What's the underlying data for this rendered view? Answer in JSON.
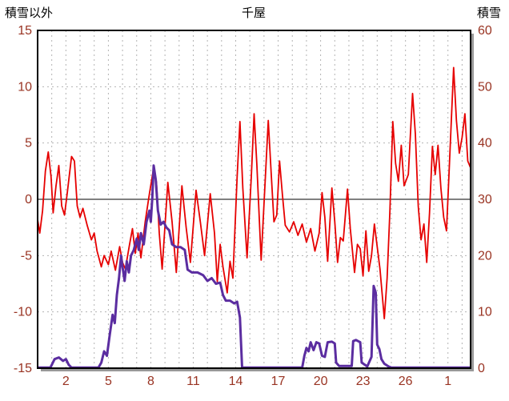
{
  "header": {
    "left_label": "積雪以外",
    "title": "千屋",
    "right_label": "積雪"
  },
  "colors": {
    "tick_label": "#993322",
    "temperature_line": "#e60000",
    "snow_line": "#5b2da0",
    "grid": "#b3b3b3",
    "zero_line": "#808080",
    "frame": "#000000",
    "frame_shadow": "#999999"
  },
  "chart_data": {
    "type": "line",
    "title": "千屋",
    "grid": true,
    "legend": "none",
    "left_axis": {
      "label": "積雪以外",
      "min": -15,
      "max": 15,
      "ticks": [
        15,
        10,
        5,
        0,
        -5,
        -10,
        -15
      ]
    },
    "right_axis": {
      "label": "積雪",
      "min": 0,
      "max": 60,
      "ticks": [
        60,
        50,
        40,
        30,
        20,
        10,
        0
      ]
    },
    "x_axis": {
      "day_min": 0,
      "day_max": 30.6,
      "grid_step": 1,
      "tick_days": [
        2,
        5,
        8,
        11,
        14,
        17,
        20,
        23,
        26,
        29
      ],
      "tick_labels": [
        "2",
        "5",
        "8",
        "11",
        "14",
        "17",
        "20",
        "23",
        "26",
        "1"
      ]
    },
    "series": [
      {
        "name": "積雪以外",
        "axis": "left",
        "color": "#e60000",
        "width": 1.8,
        "points": [
          [
            0.0,
            -1.8
          ],
          [
            0.15,
            -3.0
          ],
          [
            0.35,
            -1.0
          ],
          [
            0.55,
            2.5
          ],
          [
            0.75,
            4.2
          ],
          [
            0.95,
            2.0
          ],
          [
            1.1,
            -1.2
          ],
          [
            1.3,
            1.2
          ],
          [
            1.5,
            3.0
          ],
          [
            1.7,
            -0.6
          ],
          [
            1.9,
            -1.4
          ],
          [
            2.1,
            0.6
          ],
          [
            2.4,
            3.8
          ],
          [
            2.6,
            3.4
          ],
          [
            2.8,
            -0.6
          ],
          [
            3.0,
            -1.6
          ],
          [
            3.2,
            -0.8
          ],
          [
            3.5,
            -2.3
          ],
          [
            3.8,
            -3.6
          ],
          [
            4.0,
            -3.0
          ],
          [
            4.2,
            -4.6
          ],
          [
            4.5,
            -6.0
          ],
          [
            4.7,
            -5.0
          ],
          [
            5.0,
            -5.8
          ],
          [
            5.2,
            -4.6
          ],
          [
            5.5,
            -6.3
          ],
          [
            5.8,
            -4.2
          ],
          [
            6.0,
            -5.6
          ],
          [
            6.2,
            -6.2
          ],
          [
            6.5,
            -4.0
          ],
          [
            6.7,
            -2.6
          ],
          [
            6.9,
            -4.8
          ],
          [
            7.1,
            -3.0
          ],
          [
            7.3,
            -5.2
          ],
          [
            7.6,
            -2.0
          ],
          [
            7.9,
            0.5
          ],
          [
            8.2,
            2.8
          ],
          [
            8.4,
            1.5
          ],
          [
            8.6,
            -3.0
          ],
          [
            8.8,
            -6.2
          ],
          [
            9.2,
            1.5
          ],
          [
            9.5,
            -2.0
          ],
          [
            9.8,
            -6.5
          ],
          [
            10.2,
            1.2
          ],
          [
            10.5,
            -2.5
          ],
          [
            10.8,
            -5.6
          ],
          [
            11.2,
            0.8
          ],
          [
            11.5,
            -2.0
          ],
          [
            11.8,
            -5.0
          ],
          [
            12.2,
            0.5
          ],
          [
            12.5,
            -3.0
          ],
          [
            12.7,
            -7.3
          ],
          [
            12.9,
            -4.0
          ],
          [
            13.1,
            -6.0
          ],
          [
            13.4,
            -8.3
          ],
          [
            13.6,
            -5.5
          ],
          [
            13.8,
            -7.0
          ],
          [
            14.1,
            2.0
          ],
          [
            14.3,
            6.9
          ],
          [
            14.5,
            1.0
          ],
          [
            14.8,
            -5.2
          ],
          [
            15.1,
            2.0
          ],
          [
            15.3,
            7.6
          ],
          [
            15.5,
            3.0
          ],
          [
            15.8,
            -5.4
          ],
          [
            16.1,
            2.0
          ],
          [
            16.3,
            7.0
          ],
          [
            16.5,
            2.5
          ],
          [
            16.7,
            -2.0
          ],
          [
            16.9,
            -1.4
          ],
          [
            17.1,
            3.4
          ],
          [
            17.3,
            0.4
          ],
          [
            17.5,
            -2.3
          ],
          [
            17.8,
            -2.9
          ],
          [
            18.1,
            -2.0
          ],
          [
            18.4,
            -3.2
          ],
          [
            18.7,
            -2.2
          ],
          [
            19.0,
            -3.8
          ],
          [
            19.3,
            -2.6
          ],
          [
            19.6,
            -4.6
          ],
          [
            19.9,
            -3.0
          ],
          [
            20.1,
            0.6
          ],
          [
            20.3,
            -1.6
          ],
          [
            20.5,
            -5.5
          ],
          [
            20.8,
            1.0
          ],
          [
            21.0,
            -2.0
          ],
          [
            21.2,
            -5.6
          ],
          [
            21.4,
            -3.4
          ],
          [
            21.6,
            -3.7
          ],
          [
            21.9,
            0.9
          ],
          [
            22.1,
            -2.6
          ],
          [
            22.4,
            -6.5
          ],
          [
            22.6,
            -4.0
          ],
          [
            22.8,
            -4.4
          ],
          [
            23.0,
            -6.8
          ],
          [
            23.2,
            -2.8
          ],
          [
            23.4,
            -6.4
          ],
          [
            23.6,
            -5.0
          ],
          [
            23.8,
            -2.2
          ],
          [
            24.0,
            -4.2
          ],
          [
            24.2,
            -6.2
          ],
          [
            24.5,
            -10.6
          ],
          [
            24.7,
            -7.0
          ],
          [
            24.9,
            -1.0
          ],
          [
            25.1,
            6.9
          ],
          [
            25.3,
            3.2
          ],
          [
            25.5,
            1.6
          ],
          [
            25.7,
            4.8
          ],
          [
            25.9,
            1.2
          ],
          [
            26.2,
            2.2
          ],
          [
            26.5,
            9.4
          ],
          [
            26.7,
            5.8
          ],
          [
            26.9,
            -0.6
          ],
          [
            27.1,
            -3.6
          ],
          [
            27.3,
            -2.2
          ],
          [
            27.5,
            -5.6
          ],
          [
            27.7,
            -1.2
          ],
          [
            27.9,
            4.7
          ],
          [
            28.1,
            2.2
          ],
          [
            28.3,
            4.8
          ],
          [
            28.5,
            1.0
          ],
          [
            28.7,
            -1.6
          ],
          [
            28.9,
            -2.8
          ],
          [
            29.1,
            3.0
          ],
          [
            29.4,
            11.7
          ],
          [
            29.6,
            7.0
          ],
          [
            29.8,
            4.1
          ],
          [
            30.0,
            5.5
          ],
          [
            30.2,
            7.6
          ],
          [
            30.4,
            3.4
          ],
          [
            30.6,
            2.8
          ]
        ]
      },
      {
        "name": "積雪",
        "axis": "right",
        "color": "#5b2da0",
        "width": 3,
        "points": [
          [
            0.0,
            0.1
          ],
          [
            0.9,
            0.1
          ],
          [
            1.0,
            0.6
          ],
          [
            1.2,
            1.6
          ],
          [
            1.5,
            1.9
          ],
          [
            1.8,
            1.3
          ],
          [
            2.0,
            1.6
          ],
          [
            2.2,
            0.6
          ],
          [
            2.4,
            0.1
          ],
          [
            4.3,
            0.1
          ],
          [
            4.5,
            1.0
          ],
          [
            4.7,
            3.0
          ],
          [
            4.9,
            2.2
          ],
          [
            5.1,
            6.0
          ],
          [
            5.3,
            9.5
          ],
          [
            5.45,
            8.0
          ],
          [
            5.6,
            13.0
          ],
          [
            5.75,
            16.0
          ],
          [
            5.9,
            20.0
          ],
          [
            6.0,
            18.0
          ],
          [
            6.15,
            15.5
          ],
          [
            6.3,
            19.0
          ],
          [
            6.45,
            17.0
          ],
          [
            6.6,
            20.0
          ],
          [
            6.8,
            21.0
          ],
          [
            7.0,
            23.0
          ],
          [
            7.15,
            21.0
          ],
          [
            7.3,
            24.0
          ],
          [
            7.5,
            22.0
          ],
          [
            7.7,
            26.0
          ],
          [
            7.9,
            28.0
          ],
          [
            8.0,
            26.0
          ],
          [
            8.1,
            30.0
          ],
          [
            8.2,
            36.0
          ],
          [
            8.35,
            33.5
          ],
          [
            8.5,
            28.0
          ],
          [
            8.7,
            25.5
          ],
          [
            8.9,
            26.0
          ],
          [
            9.1,
            25.0
          ],
          [
            9.3,
            24.5
          ],
          [
            9.5,
            22.0
          ],
          [
            9.8,
            21.5
          ],
          [
            10.1,
            21.5
          ],
          [
            10.4,
            21.0
          ],
          [
            10.6,
            17.5
          ],
          [
            10.9,
            17.0
          ],
          [
            11.3,
            17.0
          ],
          [
            11.7,
            16.5
          ],
          [
            12.0,
            15.5
          ],
          [
            12.3,
            16.0
          ],
          [
            12.6,
            15.0
          ],
          [
            12.9,
            15.2
          ],
          [
            13.1,
            13.0
          ],
          [
            13.3,
            12.0
          ],
          [
            13.6,
            12.0
          ],
          [
            13.9,
            11.5
          ],
          [
            14.1,
            11.8
          ],
          [
            14.3,
            9.0
          ],
          [
            14.45,
            0.1
          ],
          [
            18.7,
            0.1
          ],
          [
            18.85,
            2.2
          ],
          [
            19.0,
            3.6
          ],
          [
            19.15,
            3.0
          ],
          [
            19.3,
            4.6
          ],
          [
            19.5,
            3.2
          ],
          [
            19.7,
            4.6
          ],
          [
            19.9,
            4.4
          ],
          [
            20.1,
            2.2
          ],
          [
            20.3,
            2.0
          ],
          [
            20.5,
            4.6
          ],
          [
            20.8,
            4.7
          ],
          [
            21.0,
            4.4
          ],
          [
            21.1,
            1.0
          ],
          [
            21.3,
            0.4
          ],
          [
            22.2,
            0.4
          ],
          [
            22.3,
            4.8
          ],
          [
            22.5,
            5.0
          ],
          [
            22.8,
            4.6
          ],
          [
            22.9,
            1.0
          ],
          [
            23.3,
            0.3
          ],
          [
            23.6,
            2.0
          ],
          [
            23.75,
            14.6
          ],
          [
            23.9,
            13.4
          ],
          [
            24.0,
            4.2
          ],
          [
            24.15,
            3.4
          ],
          [
            24.3,
            1.6
          ],
          [
            24.5,
            0.8
          ],
          [
            24.8,
            0.3
          ],
          [
            25.0,
            0.1
          ],
          [
            30.6,
            0.1
          ]
        ]
      }
    ]
  }
}
